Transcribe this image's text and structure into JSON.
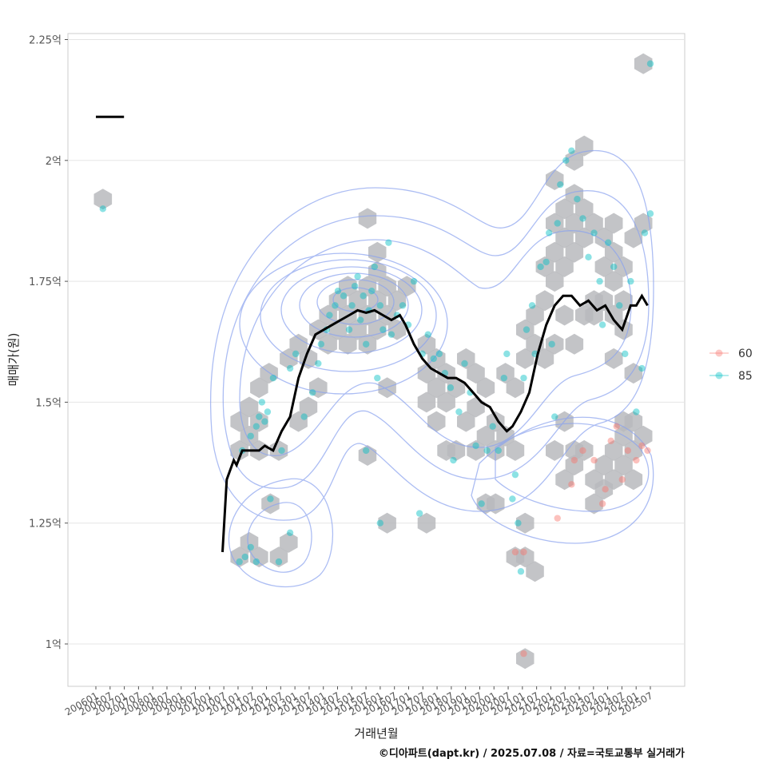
{
  "chart_data": {
    "type": "scatter",
    "xlabel": "거래년월",
    "ylabel": "매매가(원)",
    "caption": "©디아파트(dapt.kr) / 2025.07.08 / 자료=국토교통부 실거래가",
    "x_ticks": [
      "200601",
      "200607",
      "200701",
      "200707",
      "200801",
      "200807",
      "200901",
      "200907",
      "201001",
      "201007",
      "201101",
      "201107",
      "201201",
      "201207",
      "201301",
      "201307",
      "201401",
      "201407",
      "201501",
      "201507",
      "201601",
      "201607",
      "201701",
      "201707",
      "201801",
      "201807",
      "201901",
      "201907",
      "202001",
      "202007",
      "202101",
      "202107",
      "202201",
      "202207",
      "202301",
      "202307",
      "202401",
      "202407",
      "202501",
      "202507"
    ],
    "y_ticks": [
      {
        "value": 1.0,
        "label": "1억"
      },
      {
        "value": 1.25,
        "label": "1.25억"
      },
      {
        "value": 1.5,
        "label": "1.5억"
      },
      {
        "value": 1.75,
        "label": "1.75억"
      },
      {
        "value": 2.0,
        "label": "2억"
      },
      {
        "value": 2.25,
        "label": "2.25억"
      }
    ],
    "ylim": [
      0.91,
      2.27
    ],
    "legend": [
      {
        "label": "60",
        "color": "#F8766D"
      },
      {
        "label": "85",
        "color": "#00BFC4"
      }
    ],
    "colors": {
      "series60": "#F8766D",
      "series85": "#00BFC4",
      "trend": "#000000",
      "contour": "#8aa2ef",
      "hex": "#b8babd"
    },
    "trend_line": [
      [
        2010.5,
        1.19
      ],
      [
        2010.65,
        1.34
      ],
      [
        2010.9,
        1.38
      ],
      [
        2011.0,
        1.37
      ],
      [
        2011.2,
        1.4
      ],
      [
        2011.5,
        1.4
      ],
      [
        2011.8,
        1.4
      ],
      [
        2012.0,
        1.41
      ],
      [
        2012.3,
        1.4
      ],
      [
        2012.6,
        1.44
      ],
      [
        2012.9,
        1.47
      ],
      [
        2013.2,
        1.55
      ],
      [
        2013.5,
        1.6
      ],
      [
        2013.8,
        1.64
      ],
      [
        2014.1,
        1.65
      ],
      [
        2014.4,
        1.66
      ],
      [
        2014.7,
        1.67
      ],
      [
        2015.0,
        1.68
      ],
      [
        2015.3,
        1.69
      ],
      [
        2015.6,
        1.685
      ],
      [
        2015.9,
        1.69
      ],
      [
        2016.2,
        1.68
      ],
      [
        2016.5,
        1.67
      ],
      [
        2016.8,
        1.68
      ],
      [
        2017.0,
        1.66
      ],
      [
        2017.3,
        1.62
      ],
      [
        2017.6,
        1.59
      ],
      [
        2017.9,
        1.57
      ],
      [
        2018.2,
        1.56
      ],
      [
        2018.5,
        1.55
      ],
      [
        2018.8,
        1.55
      ],
      [
        2019.1,
        1.54
      ],
      [
        2019.4,
        1.52
      ],
      [
        2019.7,
        1.5
      ],
      [
        2020.0,
        1.49
      ],
      [
        2020.3,
        1.46
      ],
      [
        2020.6,
        1.44
      ],
      [
        2020.8,
        1.45
      ],
      [
        2021.1,
        1.48
      ],
      [
        2021.4,
        1.52
      ],
      [
        2021.7,
        1.6
      ],
      [
        2022.0,
        1.66
      ],
      [
        2022.3,
        1.7
      ],
      [
        2022.6,
        1.72
      ],
      [
        2022.9,
        1.72
      ],
      [
        2023.2,
        1.7
      ],
      [
        2023.5,
        1.71
      ],
      [
        2023.8,
        1.69
      ],
      [
        2024.1,
        1.7
      ],
      [
        2024.4,
        1.67
      ],
      [
        2024.7,
        1.65
      ],
      [
        2025.0,
        1.7
      ],
      [
        2025.2,
        1.7
      ],
      [
        2025.4,
        1.72
      ],
      [
        2025.6,
        1.7
      ]
    ],
    "legend_line": [
      [
        2006.0,
        2.09
      ],
      [
        2007.0,
        2.09
      ]
    ],
    "series_85": [
      [
        2006.25,
        1.9
      ],
      [
        2011.1,
        1.17
      ],
      [
        2011.3,
        1.18
      ],
      [
        2011.5,
        1.2
      ],
      [
        2011.7,
        1.17
      ],
      [
        2012.5,
        1.17
      ],
      [
        2012.9,
        1.23
      ],
      [
        2012.2,
        1.3
      ],
      [
        2011.2,
        1.4
      ],
      [
        2011.5,
        1.43
      ],
      [
        2011.7,
        1.45
      ],
      [
        2011.8,
        1.47
      ],
      [
        2012.0,
        1.46
      ],
      [
        2012.1,
        1.48
      ],
      [
        2011.9,
        1.5
      ],
      [
        2012.3,
        1.55
      ],
      [
        2012.6,
        1.4
      ],
      [
        2012.9,
        1.57
      ],
      [
        2013.1,
        1.6
      ],
      [
        2013.4,
        1.47
      ],
      [
        2013.7,
        1.52
      ],
      [
        2013.9,
        1.58
      ],
      [
        2014.0,
        1.62
      ],
      [
        2014.2,
        1.65
      ],
      [
        2014.3,
        1.68
      ],
      [
        2014.5,
        1.7
      ],
      [
        2014.6,
        1.73
      ],
      [
        2014.8,
        1.72
      ],
      [
        2015.0,
        1.65
      ],
      [
        2015.1,
        1.7
      ],
      [
        2015.2,
        1.74
      ],
      [
        2015.3,
        1.76
      ],
      [
        2015.4,
        1.67
      ],
      [
        2015.5,
        1.72
      ],
      [
        2015.6,
        1.62
      ],
      [
        2015.7,
        1.69
      ],
      [
        2015.8,
        1.73
      ],
      [
        2015.9,
        1.78
      ],
      [
        2016.1,
        1.7
      ],
      [
        2016.2,
        1.65
      ],
      [
        2016.4,
        1.83
      ],
      [
        2016.5,
        1.64
      ],
      [
        2016.7,
        1.68
      ],
      [
        2016.9,
        1.7
      ],
      [
        2017.1,
        1.66
      ],
      [
        2017.3,
        1.75
      ],
      [
        2015.6,
        1.4
      ],
      [
        2016.0,
        1.55
      ],
      [
        2016.1,
        1.25
      ],
      [
        2017.5,
        1.27
      ],
      [
        2017.6,
        1.6
      ],
      [
        2017.8,
        1.64
      ],
      [
        2018.0,
        1.59
      ],
      [
        2018.2,
        1.6
      ],
      [
        2018.4,
        1.56
      ],
      [
        2018.6,
        1.53
      ],
      [
        2018.7,
        1.38
      ],
      [
        2018.9,
        1.48
      ],
      [
        2019.1,
        1.58
      ],
      [
        2019.3,
        1.52
      ],
      [
        2019.5,
        1.41
      ],
      [
        2019.7,
        1.29
      ],
      [
        2019.9,
        1.4
      ],
      [
        2020.1,
        1.45
      ],
      [
        2020.3,
        1.4
      ],
      [
        2020.5,
        1.55
      ],
      [
        2020.6,
        1.6
      ],
      [
        2020.8,
        1.3
      ],
      [
        2020.9,
        1.35
      ],
      [
        2021.0,
        1.25
      ],
      [
        2021.1,
        1.15
      ],
      [
        2021.2,
        1.55
      ],
      [
        2021.3,
        1.65
      ],
      [
        2021.5,
        1.7
      ],
      [
        2021.6,
        1.6
      ],
      [
        2021.8,
        1.78
      ],
      [
        2022.0,
        1.79
      ],
      [
        2022.1,
        1.85
      ],
      [
        2022.2,
        1.62
      ],
      [
        2022.3,
        1.47
      ],
      [
        2022.4,
        1.87
      ],
      [
        2022.5,
        1.95
      ],
      [
        2022.7,
        2.0
      ],
      [
        2022.9,
        2.02
      ],
      [
        2023.1,
        1.92
      ],
      [
        2023.3,
        1.88
      ],
      [
        2023.5,
        1.8
      ],
      [
        2023.7,
        1.85
      ],
      [
        2023.9,
        1.75
      ],
      [
        2024.0,
        1.66
      ],
      [
        2024.2,
        1.83
      ],
      [
        2024.4,
        1.78
      ],
      [
        2024.6,
        1.7
      ],
      [
        2024.8,
        1.6
      ],
      [
        2025.0,
        1.75
      ],
      [
        2025.2,
        1.48
      ],
      [
        2025.4,
        1.57
      ],
      [
        2025.5,
        1.85
      ],
      [
        2025.7,
        1.89
      ],
      [
        2025.7,
        2.2
      ]
    ],
    "series_60": [
      [
        2021.2,
        0.98
      ],
      [
        2020.9,
        1.19
      ],
      [
        2021.2,
        1.19
      ],
      [
        2022.4,
        1.26
      ],
      [
        2022.9,
        1.33
      ],
      [
        2023.0,
        1.38
      ],
      [
        2023.3,
        1.4
      ],
      [
        2023.7,
        1.38
      ],
      [
        2024.0,
        1.29
      ],
      [
        2024.1,
        1.32
      ],
      [
        2024.3,
        1.42
      ],
      [
        2024.5,
        1.45
      ],
      [
        2024.7,
        1.34
      ],
      [
        2024.9,
        1.4
      ],
      [
        2025.2,
        1.38
      ],
      [
        2025.4,
        1.41
      ],
      [
        2025.6,
        1.4
      ]
    ],
    "hexbins": [
      [
        2006.25,
        1.92
      ],
      [
        2011.1,
        1.18
      ],
      [
        2011.45,
        1.21
      ],
      [
        2011.8,
        1.18
      ],
      [
        2012.5,
        1.18
      ],
      [
        2012.85,
        1.21
      ],
      [
        2012.2,
        1.29
      ],
      [
        2011.1,
        1.4
      ],
      [
        2011.45,
        1.43
      ],
      [
        2011.8,
        1.4
      ],
      [
        2012.5,
        1.4
      ],
      [
        2011.1,
        1.46
      ],
      [
        2011.8,
        1.46
      ],
      [
        2011.45,
        1.49
      ],
      [
        2011.8,
        1.53
      ],
      [
        2012.15,
        1.56
      ],
      [
        2012.85,
        1.59
      ],
      [
        2013.2,
        1.62
      ],
      [
        2013.55,
        1.59
      ],
      [
        2013.2,
        1.46
      ],
      [
        2013.55,
        1.49
      ],
      [
        2013.9,
        1.53
      ],
      [
        2013.9,
        1.65
      ],
      [
        2014.25,
        1.68
      ],
      [
        2014.6,
        1.71
      ],
      [
        2014.95,
        1.74
      ],
      [
        2014.25,
        1.62
      ],
      [
        2014.6,
        1.65
      ],
      [
        2014.95,
        1.68
      ],
      [
        2015.3,
        1.71
      ],
      [
        2015.65,
        1.74
      ],
      [
        2016.0,
        1.77
      ],
      [
        2015.3,
        1.65
      ],
      [
        2015.65,
        1.68
      ],
      [
        2016.0,
        1.71
      ],
      [
        2016.35,
        1.74
      ],
      [
        2016.7,
        1.71
      ],
      [
        2017.05,
        1.74
      ],
      [
        2015.65,
        1.62
      ],
      [
        2016.0,
        1.65
      ],
      [
        2016.35,
        1.68
      ],
      [
        2016.7,
        1.65
      ],
      [
        2016.0,
        1.81
      ],
      [
        2014.95,
        1.62
      ],
      [
        2015.65,
        1.88
      ],
      [
        2015.65,
        1.39
      ],
      [
        2016.35,
        1.53
      ],
      [
        2016.35,
        1.25
      ],
      [
        2017.75,
        1.25
      ],
      [
        2017.75,
        1.62
      ],
      [
        2018.1,
        1.59
      ],
      [
        2017.75,
        1.56
      ],
      [
        2018.45,
        1.56
      ],
      [
        2018.1,
        1.53
      ],
      [
        2018.8,
        1.53
      ],
      [
        2017.75,
        1.5
      ],
      [
        2018.45,
        1.5
      ],
      [
        2018.1,
        1.46
      ],
      [
        2018.45,
        1.4
      ],
      [
        2018.8,
        1.4
      ],
      [
        2019.15,
        1.59
      ],
      [
        2019.5,
        1.56
      ],
      [
        2019.85,
        1.53
      ],
      [
        2019.15,
        1.46
      ],
      [
        2019.5,
        1.49
      ],
      [
        2019.85,
        1.43
      ],
      [
        2020.2,
        1.46
      ],
      [
        2019.5,
        1.4
      ],
      [
        2020.2,
        1.4
      ],
      [
        2020.55,
        1.43
      ],
      [
        2020.9,
        1.4
      ],
      [
        2019.85,
        1.29
      ],
      [
        2020.2,
        1.29
      ],
      [
        2020.55,
        1.56
      ],
      [
        2020.9,
        1.53
      ],
      [
        2021.25,
        1.59
      ],
      [
        2020.9,
        1.18
      ],
      [
        2021.25,
        1.18
      ],
      [
        2021.6,
        1.15
      ],
      [
        2021.25,
        1.25
      ],
      [
        2021.25,
        0.97
      ],
      [
        2021.25,
        1.65
      ],
      [
        2021.6,
        1.68
      ],
      [
        2021.95,
        1.71
      ],
      [
        2021.6,
        1.62
      ],
      [
        2021.95,
        1.59
      ],
      [
        2022.3,
        1.62
      ],
      [
        2021.95,
        1.78
      ],
      [
        2022.3,
        1.81
      ],
      [
        2022.65,
        1.84
      ],
      [
        2022.3,
        1.87
      ],
      [
        2022.65,
        1.78
      ],
      [
        2023.0,
        1.81
      ],
      [
        2023.35,
        1.84
      ],
      [
        2022.3,
        1.75
      ],
      [
        2023.0,
        1.87
      ],
      [
        2023.35,
        1.9
      ],
      [
        2023.0,
        1.93
      ],
      [
        2022.65,
        1.9
      ],
      [
        2022.3,
        1.96
      ],
      [
        2023.0,
        2.0
      ],
      [
        2023.35,
        2.03
      ],
      [
        2023.7,
        1.87
      ],
      [
        2024.05,
        1.84
      ],
      [
        2024.4,
        1.81
      ],
      [
        2024.75,
        1.78
      ],
      [
        2024.05,
        1.78
      ],
      [
        2024.4,
        1.75
      ],
      [
        2024.05,
        1.71
      ],
      [
        2023.7,
        1.68
      ],
      [
        2024.75,
        1.71
      ],
      [
        2024.4,
        1.68
      ],
      [
        2024.75,
        1.65
      ],
      [
        2024.4,
        1.59
      ],
      [
        2024.4,
        1.87
      ],
      [
        2025.1,
        1.84
      ],
      [
        2025.45,
        1.87
      ],
      [
        2025.45,
        2.2
      ],
      [
        2025.1,
        1.56
      ],
      [
        2022.65,
        1.46
      ],
      [
        2022.3,
        1.4
      ],
      [
        2022.65,
        1.34
      ],
      [
        2023.0,
        1.37
      ],
      [
        2023.35,
        1.4
      ],
      [
        2023.0,
        1.4
      ],
      [
        2023.7,
        1.34
      ],
      [
        2023.7,
        1.29
      ],
      [
        2024.05,
        1.32
      ],
      [
        2024.4,
        1.4
      ],
      [
        2024.75,
        1.43
      ],
      [
        2025.1,
        1.46
      ],
      [
        2024.75,
        1.37
      ],
      [
        2025.1,
        1.4
      ],
      [
        2025.45,
        1.43
      ],
      [
        2024.4,
        1.34
      ],
      [
        2024.05,
        1.37
      ],
      [
        2024.75,
        1.46
      ],
      [
        2025.1,
        1.34
      ],
      [
        2023.7,
        1.71
      ],
      [
        2023.35,
        1.68
      ],
      [
        2023.0,
        1.62
      ],
      [
        2022.65,
        1.68
      ]
    ]
  }
}
